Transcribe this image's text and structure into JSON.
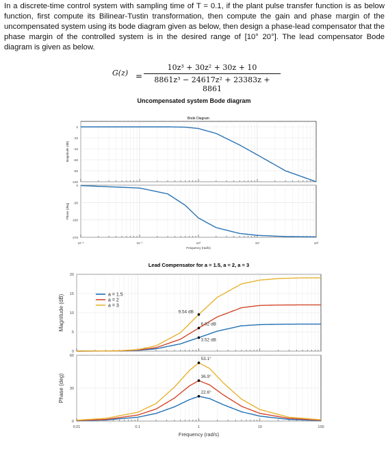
{
  "problem": {
    "line1": "In a discrete-time control system with sampling time of T = 0.1, if the plant pulse transfer function is as",
    "line2": "below function, first compute its Bilinear-Tustin transformation, then compute the gain and phase margin",
    "line3": "of the uncompensated system using its bode diagram given as below, then design a phase-lead",
    "line4": "compensator that the phase margin of the controlled system is in the desired range of [10° 20°]. The lead",
    "line5": "compensator Bode diagram is given as below."
  },
  "equation": {
    "lhs": "G(z)",
    "equals": "=",
    "numerator": "10z³ + 30z² + 30z + 10",
    "denominator": "8861z³ − 24617z² + 23383z + 8861"
  },
  "chart1_caption": "Uncompensated system Bode diagram",
  "chart_data": [
    {
      "type": "line",
      "title": "Bode Diagram",
      "xlabel": "Frequency (rad/s)",
      "xscale": "log",
      "xlim": [
        0.01,
        100
      ],
      "x_ticks": [
        "10⁻²",
        "10⁻¹",
        "10⁰",
        "10¹",
        "10²"
      ],
      "subplots": [
        {
          "ylabel": "Magnitude (dB)",
          "ylim": [
            -100,
            10
          ],
          "y_ticks": [
            "0",
            "-20",
            "-40",
            "-60",
            "-80",
            "-100"
          ],
          "series": [
            {
              "x": [
                0.01,
                0.1,
                0.3,
                0.6,
                1,
                2,
                5,
                10,
                30,
                100
              ],
              "y": [
                0,
                0,
                0,
                -0.5,
                -3,
                -12,
                -33,
                -51,
                -80,
                -100
              ]
            }
          ]
        },
        {
          "ylabel": "Phase (deg)",
          "ylim": [
            -270,
            0
          ],
          "y_ticks": [
            "0",
            "-90",
            "-180",
            "-270"
          ],
          "series": [
            {
              "x": [
                0.01,
                0.1,
                0.3,
                0.6,
                1,
                2,
                5,
                10,
                30,
                100
              ],
              "y": [
                -2,
                -15,
                -45,
                -105,
                -170,
                -220,
                -250,
                -260,
                -266,
                -268
              ]
            }
          ]
        }
      ],
      "grid": true
    },
    {
      "type": "line",
      "title": "Lead Compensator for a = 1.5, a = 2, a = 3",
      "xlabel": "Frequency (rad/s)",
      "xscale": "log",
      "xlim": [
        0.01,
        100
      ],
      "x_ticks": [
        "0.01",
        "0.1",
        "1",
        "10",
        "100"
      ],
      "legend_position": "upper-left",
      "colors": [
        "#1f6fb4",
        "#d4482a",
        "#e8b230"
      ],
      "subplots": [
        {
          "ylabel": "Magnitude (dB)",
          "ylim": [
            0,
            20
          ],
          "y_ticks": [
            "0",
            "5",
            "10",
            "15",
            "20"
          ],
          "series": [
            {
              "name": "a = 1.5",
              "x": [
                0.01,
                0.05,
                0.1,
                0.2,
                0.5,
                1,
                2,
                5,
                10,
                20,
                50,
                100
              ],
              "y": [
                0,
                0.05,
                0.2,
                0.6,
                1.9,
                3.52,
                5.2,
                6.6,
                6.9,
                7.0,
                7.04,
                7.04
              ]
            },
            {
              "name": "a = 2",
              "x": [
                0.01,
                0.05,
                0.1,
                0.2,
                0.5,
                1,
                2,
                5,
                10,
                20,
                50,
                100
              ],
              "y": [
                0,
                0.07,
                0.3,
                0.9,
                3.1,
                6.02,
                8.9,
                11.3,
                11.9,
                12.0,
                12.04,
                12.04
              ]
            },
            {
              "name": "a = 3",
              "x": [
                0.01,
                0.05,
                0.1,
                0.2,
                0.5,
                1,
                2,
                5,
                10,
                20,
                50,
                100
              ],
              "y": [
                0,
                0.1,
                0.4,
                1.4,
                4.8,
                9.54,
                14.0,
                17.5,
                18.5,
                18.9,
                19.08,
                19.08
              ]
            }
          ],
          "annotations": [
            {
              "text": "9.54 dB",
              "x": 1,
              "y": 9.54
            },
            {
              "text": "6.02 dB",
              "x": 1,
              "y": 6.02
            },
            {
              "text": "3.52 dB",
              "x": 1,
              "y": 3.52
            }
          ]
        },
        {
          "ylabel": "Phase (deg)",
          "ylim": [
            0,
            60
          ],
          "y_ticks": [
            "0",
            "30",
            "60"
          ],
          "series": [
            {
              "name": "a = 1.5",
              "x": [
                0.01,
                0.03,
                0.1,
                0.2,
                0.4,
                0.7,
                1,
                1.5,
                2.5,
                5,
                10,
                30,
                100
              ],
              "y": [
                0.3,
                1,
                3.5,
                7,
                13,
                19.5,
                22.6,
                20.5,
                15,
                8.5,
                4.5,
                1.5,
                0.5
              ]
            },
            {
              "name": "a = 2",
              "x": [
                0.01,
                0.03,
                0.1,
                0.2,
                0.4,
                0.7,
                1,
                1.5,
                2.5,
                5,
                10,
                30,
                100
              ],
              "y": [
                0.5,
                1.5,
                5.5,
                11,
                21,
                32,
                36.9,
                33,
                24,
                13.5,
                7,
                2.5,
                0.8
              ]
            },
            {
              "name": "a = 3",
              "x": [
                0.01,
                0.03,
                0.1,
                0.2,
                0.4,
                0.7,
                1,
                1.5,
                2.5,
                5,
                10,
                30,
                100
              ],
              "y": [
                0.8,
                2.5,
                8,
                16,
                31,
                46,
                53.1,
                48,
                35,
                20,
                10.5,
                3.5,
                1.2
              ]
            }
          ],
          "annotations": [
            {
              "text": "53.1°",
              "x": 1,
              "y": 53.1
            },
            {
              "text": "36.9°",
              "x": 1,
              "y": 36.9
            },
            {
              "text": "22.6°",
              "x": 1,
              "y": 22.6
            }
          ]
        }
      ],
      "grid": true
    }
  ]
}
